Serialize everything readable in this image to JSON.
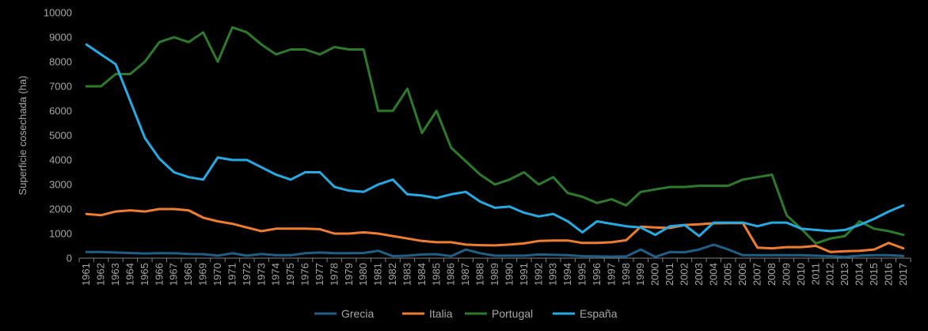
{
  "chart_data": {
    "type": "line",
    "title": "",
    "xlabel": "",
    "ylabel": "Superficie cosechada  (ha)",
    "ylim": [
      0,
      10000
    ],
    "yticks": [
      0,
      1000,
      2000,
      3000,
      4000,
      5000,
      6000,
      7000,
      8000,
      9000,
      10000
    ],
    "grid": false,
    "legend_position": "bottom",
    "categories": [
      "1961",
      "1962",
      "1963",
      "1964",
      "1965",
      "1966",
      "1967",
      "1968",
      "1969",
      "1970",
      "1971",
      "1972",
      "1973",
      "1974",
      "1975",
      "1976",
      "1977",
      "1978",
      "1979",
      "1980",
      "1981",
      "1982",
      "1983",
      "1984",
      "1985",
      "1986",
      "1987",
      "1988",
      "1989",
      "1990",
      "1991",
      "1992",
      "1993",
      "1994",
      "1995",
      "1996",
      "1997",
      "1998",
      "1999",
      "2000",
      "2001",
      "2002",
      "2003",
      "2004",
      "2005",
      "2006",
      "2007",
      "2008",
      "2009",
      "2010",
      "2011",
      "2012",
      "2013",
      "2014",
      "2015",
      "2016",
      "2017"
    ],
    "series": [
      {
        "name": "Grecia",
        "color": "#1f5f85",
        "values": [
          250,
          250,
          230,
          210,
          190,
          200,
          200,
          170,
          160,
          100,
          200,
          100,
          170,
          120,
          120,
          200,
          230,
          200,
          200,
          210,
          300,
          80,
          100,
          150,
          160,
          80,
          350,
          200,
          100,
          100,
          100,
          150,
          140,
          120,
          80,
          70,
          60,
          70,
          350,
          50,
          250,
          240,
          350,
          550,
          350,
          120,
          120,
          120,
          120,
          120,
          100,
          80,
          50,
          100,
          120,
          120,
          90
        ]
      },
      {
        "name": "Italia",
        "color": "#ed7d31",
        "values": [
          1800,
          1750,
          1900,
          1950,
          1900,
          2000,
          2000,
          1950,
          1650,
          1500,
          1400,
          1250,
          1100,
          1200,
          1200,
          1200,
          1180,
          1000,
          1000,
          1050,
          1000,
          900,
          800,
          700,
          650,
          650,
          550,
          530,
          520,
          550,
          600,
          700,
          720,
          720,
          620,
          620,
          650,
          730,
          1280,
          1250,
          1230,
          1350,
          1380,
          1420,
          1430,
          1430,
          430,
          400,
          450,
          450,
          500,
          250,
          280,
          300,
          350,
          620,
          400
        ]
      },
      {
        "name": "Portugal",
        "color": "#2d7a2d",
        "values": [
          7000,
          7000,
          7500,
          7500,
          8000,
          8800,
          9000,
          8800,
          9200,
          8000,
          9400,
          9200,
          8700,
          8300,
          8500,
          8500,
          8300,
          8600,
          8500,
          8500,
          6000,
          6000,
          6900,
          5100,
          6000,
          4500,
          3950,
          3400,
          3000,
          3200,
          3500,
          3000,
          3300,
          2650,
          2500,
          2250,
          2400,
          2150,
          2700,
          2800,
          2900,
          2900,
          2950,
          2950,
          2950,
          3200,
          3300,
          3400,
          1750,
          1200,
          600,
          800,
          900,
          1500,
          1200,
          1100,
          950
        ]
      },
      {
        "name": "España",
        "color": "#27a9e1",
        "values": [
          8700,
          8300,
          7900,
          6400,
          4900,
          4050,
          3500,
          3300,
          3200,
          4100,
          4000,
          4000,
          3700,
          3400,
          3200,
          3500,
          3500,
          2900,
          2750,
          2700,
          3000,
          3200,
          2600,
          2550,
          2450,
          2600,
          2700,
          2300,
          2050,
          2100,
          1850,
          1700,
          1800,
          1500,
          1050,
          1500,
          1400,
          1300,
          1250,
          950,
          1300,
          1350,
          900,
          1450,
          1450,
          1450,
          1300,
          1450,
          1450,
          1200,
          1150,
          1100,
          1150,
          1350,
          1600,
          1900,
          2150
        ]
      }
    ]
  }
}
